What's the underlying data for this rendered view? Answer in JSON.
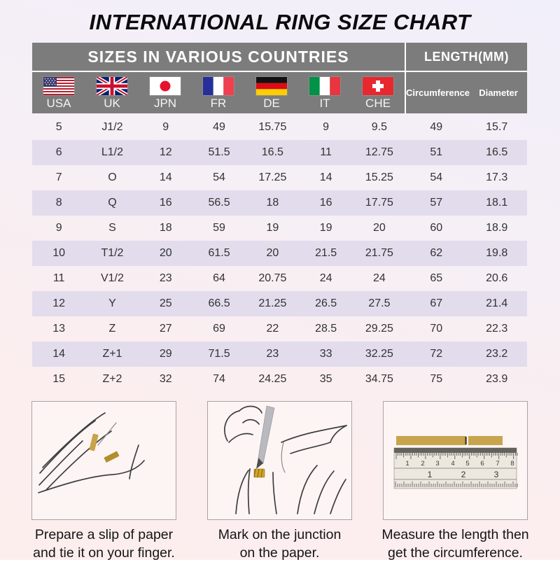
{
  "title": "INTERNATIONAL RING SIZE CHART",
  "table": {
    "header_left": "SIZES IN VARIOUS COUNTRIES",
    "header_right": "LENGTH(MM)",
    "countries": [
      "USA",
      "UK",
      "JPN",
      "FR",
      "DE",
      "IT",
      "CHE"
    ],
    "length_columns": [
      "Circumference",
      "Diameter"
    ]
  },
  "chart_data": {
    "type": "table",
    "title": "INTERNATIONAL RING SIZE CHART",
    "column_groups": [
      {
        "label": "SIZES IN VARIOUS COUNTRIES",
        "span": 7
      },
      {
        "label": "LENGTH(MM)",
        "span": 2
      }
    ],
    "columns": [
      "USA",
      "UK",
      "JPN",
      "FR",
      "DE",
      "IT",
      "CHE",
      "Circumference",
      "Diameter"
    ],
    "rows": [
      [
        "5",
        "J1/2",
        "9",
        "49",
        "15.75",
        "9",
        "9.5",
        "49",
        "15.7"
      ],
      [
        "6",
        "L1/2",
        "12",
        "51.5",
        "16.5",
        "11",
        "12.75",
        "51",
        "16.5"
      ],
      [
        "7",
        "O",
        "14",
        "54",
        "17.25",
        "14",
        "15.25",
        "54",
        "17.3"
      ],
      [
        "8",
        "Q",
        "16",
        "56.5",
        "18",
        "16",
        "17.75",
        "57",
        "18.1"
      ],
      [
        "9",
        "S",
        "18",
        "59",
        "19",
        "19",
        "20",
        "60",
        "18.9"
      ],
      [
        "10",
        "T1/2",
        "20",
        "61.5",
        "20",
        "21.5",
        "21.75",
        "62",
        "19.8"
      ],
      [
        "11",
        "V1/2",
        "23",
        "64",
        "20.75",
        "24",
        "24",
        "65",
        "20.6"
      ],
      [
        "12",
        "Y",
        "25",
        "66.5",
        "21.25",
        "26.5",
        "27.5",
        "67",
        "21.4"
      ],
      [
        "13",
        "Z",
        "27",
        "69",
        "22",
        "28.5",
        "29.25",
        "70",
        "22.3"
      ],
      [
        "14",
        "Z+1",
        "29",
        "71.5",
        "23",
        "33",
        "32.25",
        "72",
        "23.2"
      ],
      [
        "15",
        "Z+2",
        "32",
        "74",
        "24.25",
        "35",
        "34.75",
        "75",
        "23.9"
      ]
    ]
  },
  "instructions": [
    {
      "line1": "Prepare a slip of paper",
      "line2": "and tie it on your finger."
    },
    {
      "line1": "Mark on the junction",
      "line2": "on the paper."
    },
    {
      "line1": "Measure the length then",
      "line2": "get the circumference."
    }
  ],
  "ruler": {
    "cm_numbers": [
      "1",
      "2",
      "3",
      "4",
      "5",
      "6",
      "7",
      "8"
    ],
    "inch_numbers": [
      "1",
      "2",
      "3"
    ]
  },
  "colors": {
    "header_bg": "#7d7c7d",
    "row_alt_bg": "#e2dcec",
    "paper_slip": "#c9a348",
    "bg_top": "#f1effa",
    "bg_bottom": "#fdeeee"
  }
}
